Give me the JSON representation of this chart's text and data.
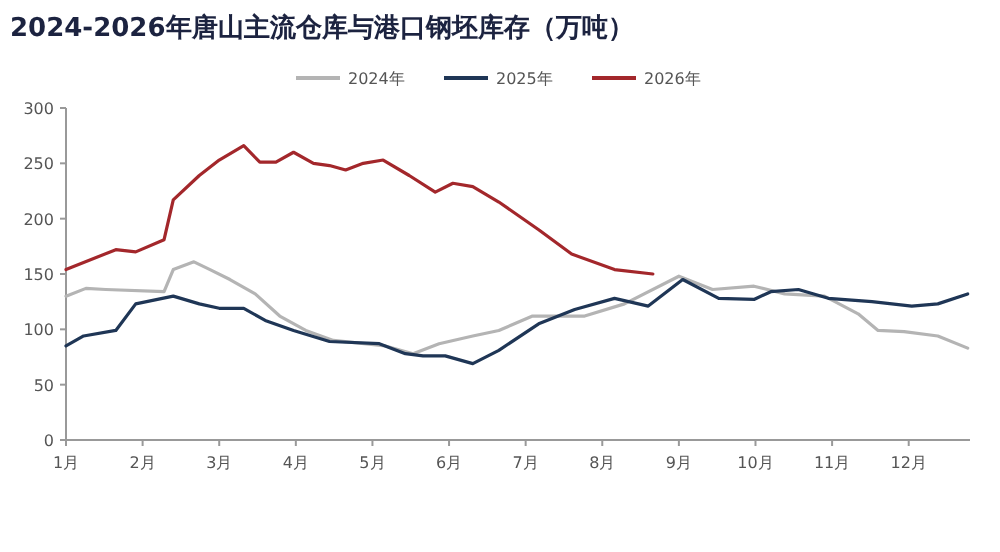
{
  "chart_data": {
    "type": "line",
    "title": "2024-2026年唐山主流仓库与港口钢坯库存（万吨）",
    "xlim": [
      1,
      12.8
    ],
    "ylim": [
      0,
      300
    ],
    "yticks": [
      0,
      50,
      100,
      150,
      200,
      250,
      300
    ],
    "xticks": [
      {
        "value": 1,
        "label": "1月"
      },
      {
        "value": 2,
        "label": "2月"
      },
      {
        "value": 3,
        "label": "3月"
      },
      {
        "value": 4,
        "label": "4月"
      },
      {
        "value": 5,
        "label": "5月"
      },
      {
        "value": 6,
        "label": "6月"
      },
      {
        "value": 7,
        "label": "7月"
      },
      {
        "value": 8,
        "label": "8月"
      },
      {
        "value": 9,
        "label": "9月"
      },
      {
        "value": 10,
        "label": "10月"
      },
      {
        "value": 11,
        "label": "11月"
      },
      {
        "value": 12,
        "label": "12月"
      }
    ],
    "legend": "top",
    "series": [
      {
        "name": "2024年",
        "color": "#b4b4b4",
        "x": [
          1,
          1.26,
          1.52,
          2.28,
          2.4,
          2.67,
          2.88,
          3.14,
          3.47,
          3.79,
          4.13,
          4.49,
          5.17,
          5.53,
          5.87,
          6.31,
          6.65,
          7.09,
          7.77,
          8.29,
          9.0,
          9.44,
          9.98,
          10.38,
          10.9,
          11.34,
          11.6,
          11.94,
          12.38,
          12.77
        ],
        "values": [
          130,
          137,
          136,
          134,
          154,
          161,
          154,
          145,
          132,
          112,
          99,
          90,
          85,
          78,
          87,
          94,
          99,
          112,
          112,
          123,
          148,
          136,
          139,
          132,
          130,
          114,
          99,
          98,
          94,
          83
        ]
      },
      {
        "name": "2025年",
        "color": "#1f3656",
        "x": [
          1,
          1.23,
          1.65,
          1.91,
          2.4,
          2.74,
          3.0,
          3.32,
          3.6,
          3.97,
          4.44,
          5.09,
          5.43,
          5.66,
          5.95,
          6.31,
          6.65,
          7.17,
          7.64,
          8.16,
          8.6,
          9.05,
          9.52,
          9.98,
          10.2,
          10.56,
          10.95,
          11.52,
          12.04,
          12.38,
          12.77
        ],
        "values": [
          85,
          94,
          99,
          123,
          130,
          123,
          119,
          119,
          108,
          99,
          89,
          87,
          78,
          76,
          76,
          69,
          81,
          105,
          118,
          128,
          121,
          145,
          128,
          127,
          134,
          136,
          128,
          125,
          121,
          123,
          132
        ]
      },
      {
        "name": "2026年",
        "color": "#a3272b",
        "x": [
          1,
          1.65,
          1.91,
          2.28,
          2.4,
          2.74,
          3.0,
          3.32,
          3.53,
          3.74,
          3.97,
          4.23,
          4.44,
          4.65,
          4.88,
          5.14,
          5.48,
          5.82,
          6.05,
          6.31,
          6.65,
          7.17,
          7.6,
          8.16,
          8.66
        ],
        "values": [
          154,
          172,
          170,
          181,
          217,
          239,
          253,
          266,
          251,
          251,
          260,
          250,
          248,
          244,
          250,
          253,
          239,
          224,
          232,
          229,
          215,
          190,
          168,
          154,
          150
        ]
      }
    ]
  }
}
